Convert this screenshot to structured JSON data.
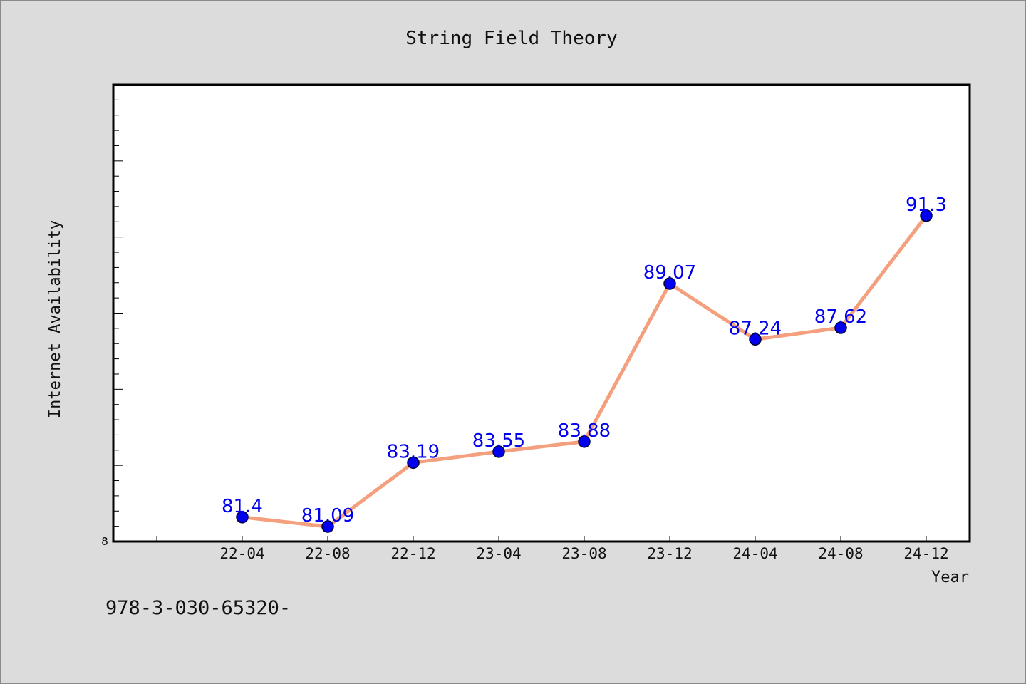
{
  "chart_data": {
    "type": "line",
    "title": "String Field Theory",
    "xlabel": "Year",
    "ylabel": "Internet Availability",
    "categories": [
      "22-04",
      "22-08",
      "22-12",
      "23-04",
      "23-08",
      "23-12",
      "24-04",
      "24-08",
      "24-12"
    ],
    "series": [
      {
        "values": [
          81.4,
          81.09,
          83.19,
          83.55,
          83.88,
          89.07,
          87.24,
          87.62,
          91.3
        ],
        "labels": [
          "81.4",
          "81.09",
          "83.19",
          "83.55",
          "83.88",
          "89.07",
          "87.24",
          "87.62",
          "91.3"
        ]
      }
    ],
    "ylim": [
      80.6,
      95.6
    ],
    "y_bottom_tick_label": "8",
    "grid": false,
    "colors": {
      "line": "#f4a07e",
      "marker": "#0000ee",
      "label": "#0000ee",
      "plot_bg": "#ffffff",
      "page_bg": "#dcdcdc"
    }
  },
  "footer_text": "978-3-030-65320-"
}
